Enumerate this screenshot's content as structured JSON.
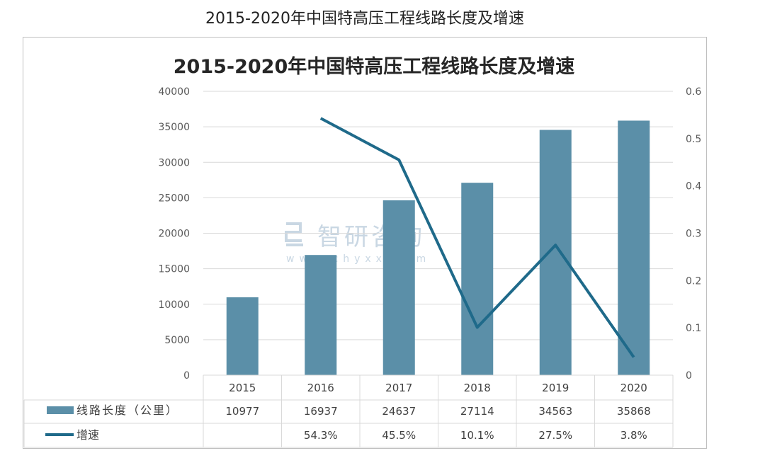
{
  "page_title": "2015-2020年中国特高压工程线路长度及增速",
  "watermark": {
    "brand": "智研咨询",
    "url": "www.chyxx.com"
  },
  "colors": {
    "bar": "#5b8fa8",
    "line": "#1f6a8a",
    "grid": "#d9d9d9",
    "text": "#404040",
    "watermark": "#c9d7e3"
  },
  "chart_data": {
    "type": "bar",
    "title": "2015-2020年中国特高压工程线路长度及增速",
    "categories": [
      "2015",
      "2016",
      "2017",
      "2018",
      "2019",
      "2020"
    ],
    "series": [
      {
        "name": "线路长度（公里）",
        "type": "bar",
        "axis": "left",
        "values": [
          10977,
          16937,
          24637,
          27114,
          34563,
          35868
        ],
        "labels": [
          "10977",
          "16937",
          "24637",
          "27114",
          "34563",
          "35868"
        ]
      },
      {
        "name": "增速",
        "type": "line",
        "axis": "right",
        "values": [
          null,
          0.543,
          0.455,
          0.101,
          0.275,
          0.038
        ],
        "labels": [
          "",
          "54.3%",
          "45.5%",
          "10.1%",
          "27.5%",
          "3.8%"
        ]
      }
    ],
    "y_left": {
      "ylim": [
        0,
        40000
      ],
      "ticks": [
        "0",
        "5000",
        "10000",
        "15000",
        "20000",
        "25000",
        "30000",
        "35000",
        "40000"
      ]
    },
    "y_right": {
      "ylim": [
        0,
        0.6
      ],
      "ticks": [
        "0",
        "0.1",
        "0.2",
        "0.3",
        "0.4",
        "0.5",
        "0.6"
      ]
    },
    "grid": true,
    "data_table": true
  }
}
